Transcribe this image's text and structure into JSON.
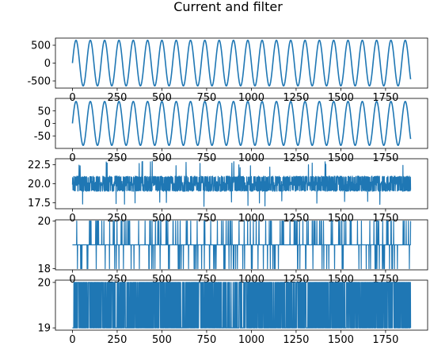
{
  "figure": {
    "title": "Current and filter",
    "line_color": "#1f77b4"
  },
  "chart_data": [
    {
      "type": "line",
      "title": "",
      "xlabel": "",
      "ylabel": "",
      "xlim": [
        -95,
        1985
      ],
      "ylim": [
        -700,
        700
      ],
      "xticks": [
        0,
        250,
        500,
        750,
        1000,
        1250,
        1500,
        1750
      ],
      "xtick_labels": [
        "0",
        "250",
        "500",
        "750",
        "1000",
        "1250",
        "1500",
        "1750"
      ],
      "yticks": [
        500,
        0,
        -500
      ],
      "ytick_labels": [
        "500",
        "0",
        "-500"
      ],
      "grid": false,
      "series": [
        {
          "signal": "sine",
          "amplitude": 640,
          "period": 80,
          "offset": 0,
          "x": [
            0,
            1890
          ]
        }
      ]
    },
    {
      "type": "line",
      "title": "",
      "xlabel": "",
      "ylabel": "",
      "xlim": [
        -95,
        1985
      ],
      "ylim": [
        -100,
        100
      ],
      "xticks": [
        0,
        250,
        500,
        750,
        1000,
        1250,
        1500,
        1750
      ],
      "xtick_labels": [
        "0",
        "250",
        "500",
        "750",
        "1000",
        "1250",
        "1500",
        "1750"
      ],
      "yticks": [
        50,
        0,
        -50
      ],
      "ytick_labels": [
        "50",
        "0",
        "-50"
      ],
      "grid": false,
      "series": [
        {
          "signal": "sine",
          "amplitude": 88,
          "period": 80,
          "offset": 0,
          "x": [
            0,
            1890
          ]
        }
      ]
    },
    {
      "type": "line",
      "title": "",
      "xlabel": "",
      "ylabel": "",
      "xlim": [
        -95,
        1985
      ],
      "ylim": [
        16.7,
        23.3
      ],
      "xticks": [
        0,
        250,
        500,
        750,
        1000,
        1250,
        1500,
        1750
      ],
      "xtick_labels": [
        "0",
        "250",
        "500",
        "750",
        "1000",
        "1250",
        "1500",
        "1750"
      ],
      "yticks": [
        22.5,
        20.0,
        17.5
      ],
      "ytick_labels": [
        "22.5",
        "20.0",
        "17.5"
      ],
      "grid": false,
      "series": [
        {
          "signal": "noise",
          "baseline": 20,
          "band": [
            19,
            21
          ],
          "spike_range": [
            17,
            23
          ],
          "x": [
            0,
            1890
          ]
        }
      ]
    },
    {
      "type": "line",
      "title": "",
      "xlabel": "",
      "ylabel": "",
      "xlim": [
        -95,
        1985
      ],
      "ylim": [
        17.95,
        20.05
      ],
      "xticks": [
        0,
        250,
        500,
        750,
        1000,
        1250,
        1500,
        1750
      ],
      "xtick_labels": [
        "0",
        "250",
        "500",
        "750",
        "1000",
        "1250",
        "1500",
        "1750"
      ],
      "yticks": [
        20,
        18
      ],
      "ytick_labels": [
        "20",
        "18"
      ],
      "grid": false,
      "series": [
        {
          "signal": "steps",
          "baseline": 19,
          "levels": [
            18,
            19,
            20
          ],
          "x": [
            0,
            1890
          ]
        }
      ]
    },
    {
      "type": "line",
      "title": "",
      "xlabel": "",
      "ylabel": "",
      "xlim": [
        -95,
        1985
      ],
      "ylim": [
        18.95,
        20.05
      ],
      "xticks": [
        0,
        250,
        500,
        750,
        1000,
        1250,
        1500,
        1750
      ],
      "xtick_labels": [
        "0",
        "250",
        "500",
        "750",
        "1000",
        "1250",
        "1500",
        "1750"
      ],
      "yticks": [
        20,
        19
      ],
      "ytick_labels": [
        "20",
        "19"
      ],
      "grid": false,
      "series": [
        {
          "signal": "binary",
          "levels": [
            19,
            20
          ],
          "x": [
            0,
            1890
          ]
        }
      ]
    }
  ]
}
